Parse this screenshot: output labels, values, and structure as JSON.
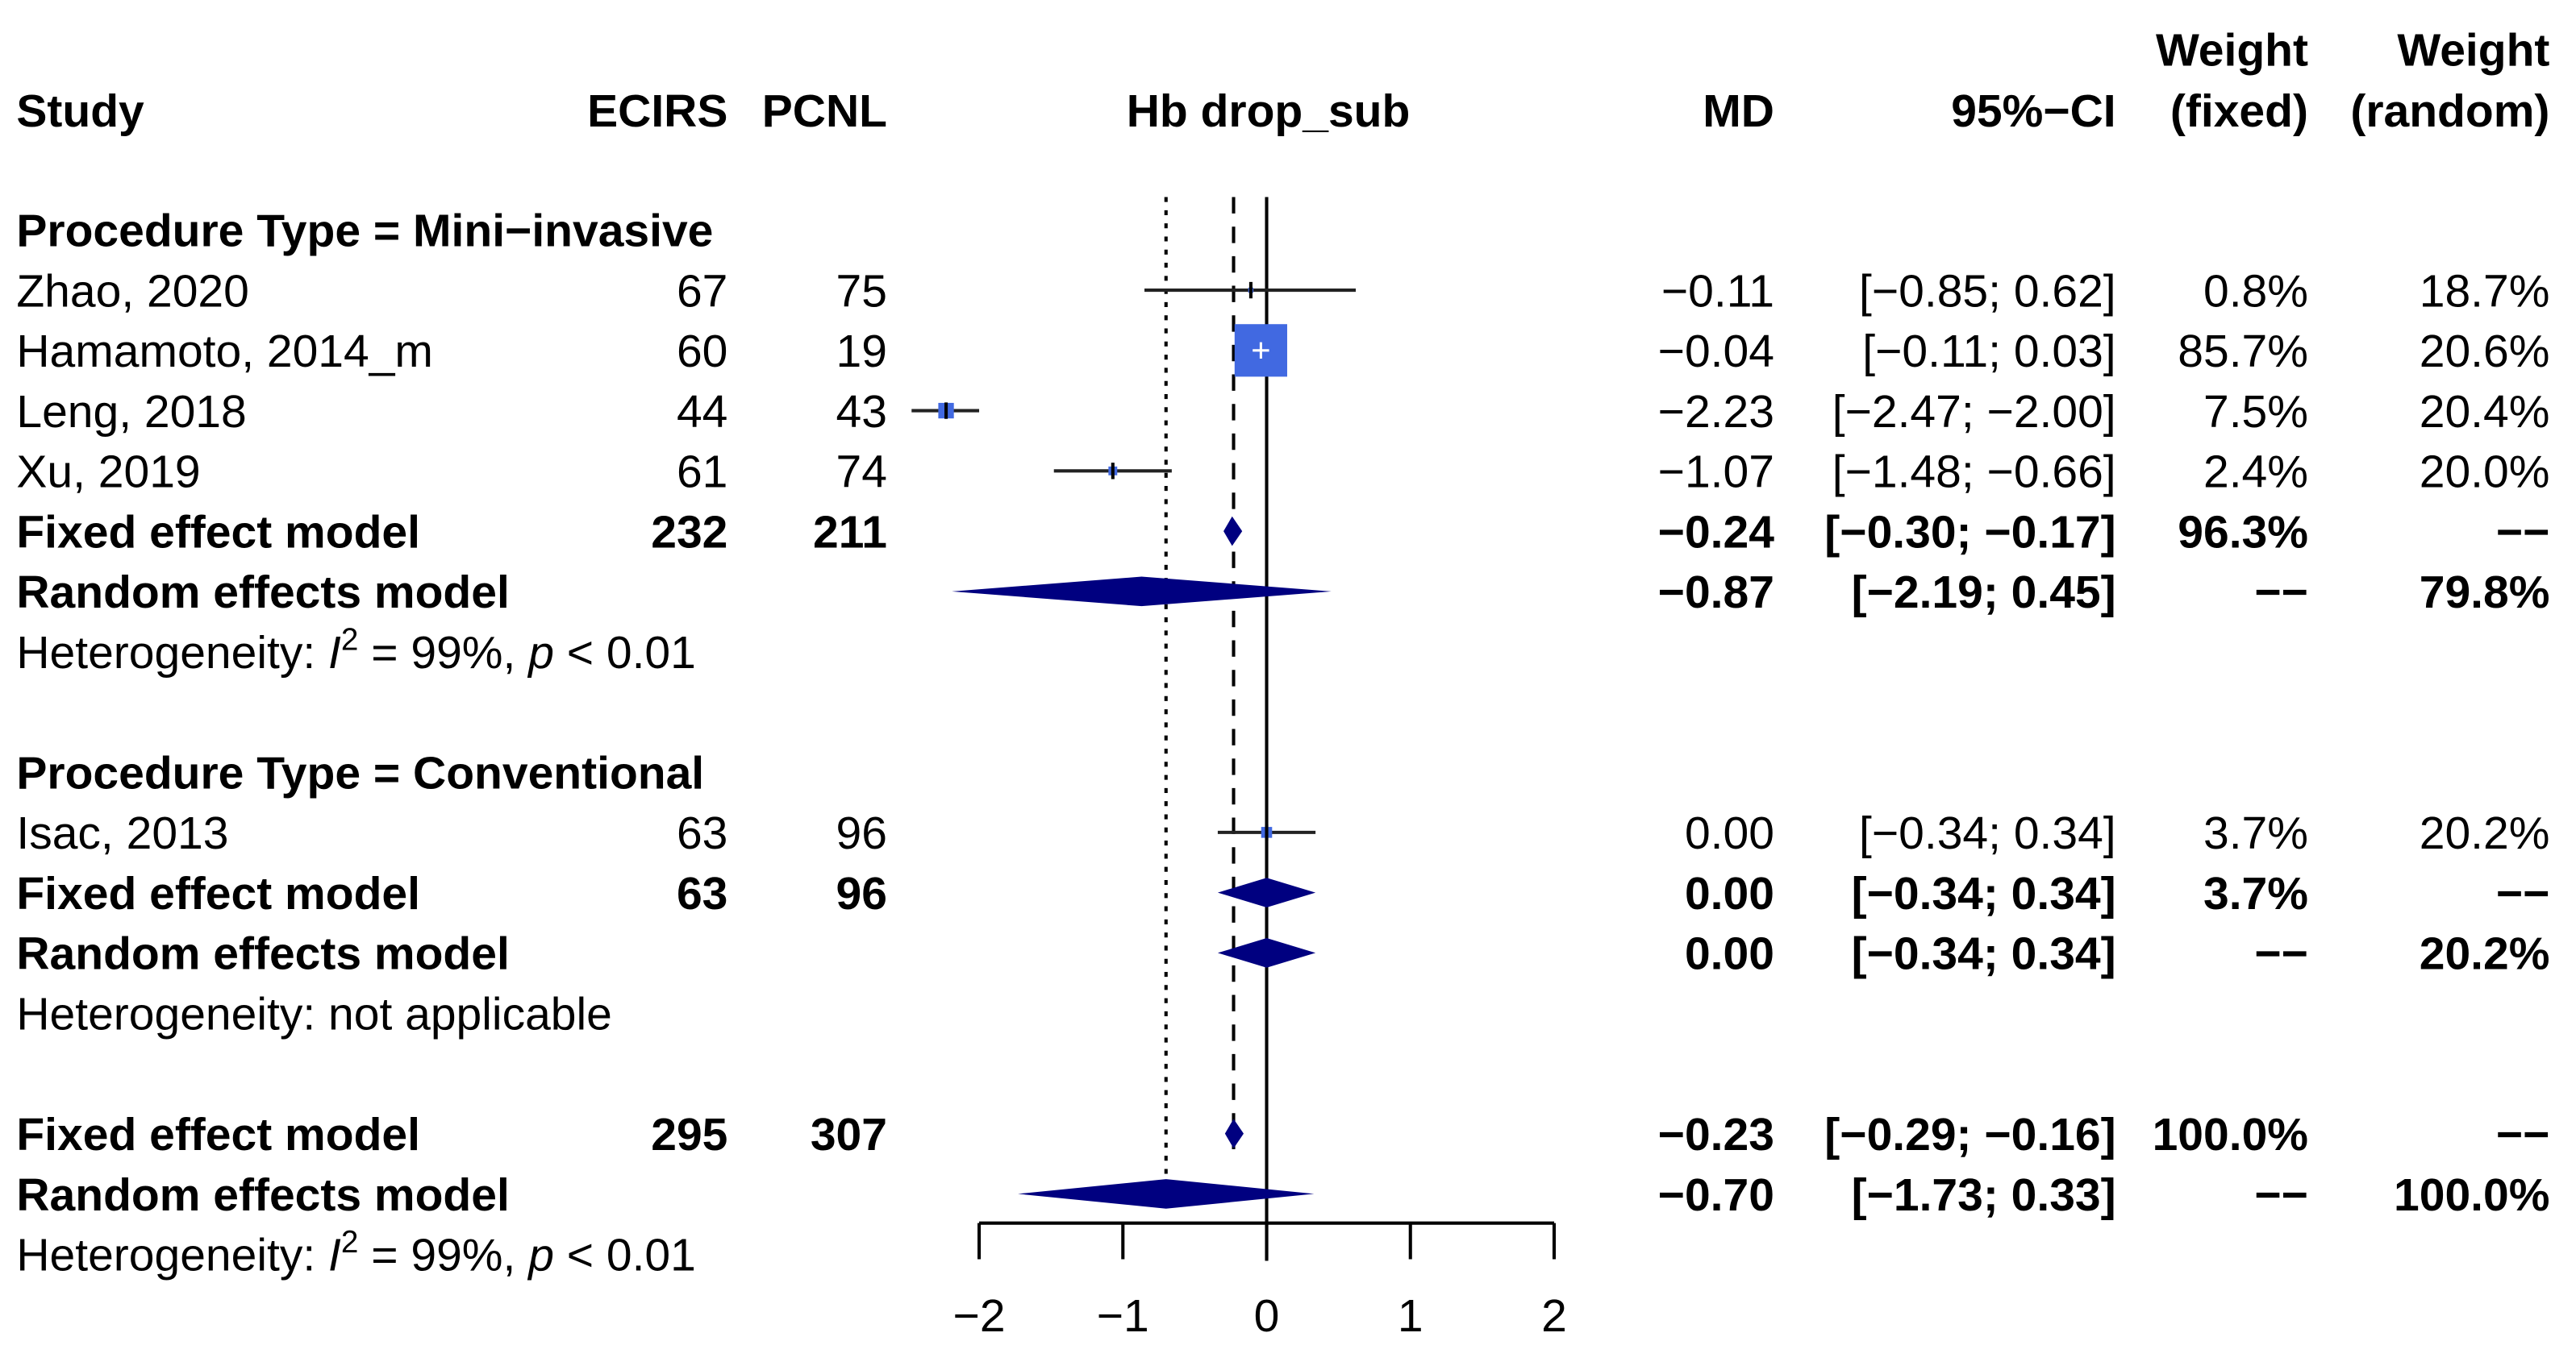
{
  "chart_data": {
    "type": "forest",
    "header": {
      "study": "Study",
      "ecirs": "ECIRS",
      "pcnl": "PCNL",
      "plot_title": "Hb drop_sub",
      "md": "MD",
      "ci": "95%−CI",
      "weight_fixed_1": "Weight",
      "weight_fixed_2": "(fixed)",
      "weight_random_1": "Weight",
      "weight_random_2": "(random)"
    },
    "xlim": [
      -2,
      2
    ],
    "xticks": [
      "−2",
      "−1",
      "0",
      "1",
      "2"
    ],
    "xtick_values": [
      -2,
      -1,
      0,
      1,
      2
    ],
    "reference_lines": {
      "null": 0,
      "fixed": -0.23,
      "random": -0.7
    },
    "colors": {
      "square": "#4169E1",
      "diamond": "#000080",
      "ci": "#000000"
    },
    "rows": [
      {
        "type": "group",
        "label": "Procedure Type = Mini−invasive"
      },
      {
        "type": "study",
        "study": "Zhao, 2020",
        "ecirs": "67",
        "pcnl": "75",
        "md": "−0.11",
        "ci": "[−0.85;  0.62]",
        "wf": "0.8%",
        "wr": "18.7%",
        "est": -0.11,
        "lo": -0.85,
        "hi": 0.62,
        "weight": 0.8
      },
      {
        "type": "study",
        "study": "Hamamoto, 2014_m",
        "ecirs": "60",
        "pcnl": "19",
        "md": "−0.04",
        "ci": "[−0.11;  0.03]",
        "wf": "85.7%",
        "wr": "20.6%",
        "est": -0.04,
        "lo": -0.11,
        "hi": 0.03,
        "weight": 85.7
      },
      {
        "type": "study",
        "study": "Leng, 2018",
        "ecirs": "44",
        "pcnl": "43",
        "md": "−2.23",
        "ci": "[−2.47; −2.00]",
        "wf": "7.5%",
        "wr": "20.4%",
        "est": -2.23,
        "lo": -2.47,
        "hi": -2.0,
        "weight": 7.5
      },
      {
        "type": "study",
        "study": "Xu, 2019",
        "ecirs": "61",
        "pcnl": "74",
        "md": "−1.07",
        "ci": "[−1.48; −0.66]",
        "wf": "2.4%",
        "wr": "20.0%",
        "est": -1.07,
        "lo": -1.48,
        "hi": -0.66,
        "weight": 2.4
      },
      {
        "type": "fixed",
        "study": "Fixed effect model",
        "ecirs": "232",
        "pcnl": "211",
        "md": "−0.24",
        "ci": "[−0.30; −0.17]",
        "wf": "96.3%",
        "wr": "−−",
        "est": -0.24,
        "lo": -0.3,
        "hi": -0.17
      },
      {
        "type": "random",
        "study": "Random effects model",
        "ecirs": "",
        "pcnl": "",
        "md": "−0.87",
        "ci": "[−2.19;  0.45]",
        "wf": "−−",
        "wr": "79.8%",
        "est": -0.87,
        "lo": -2.19,
        "hi": 0.45
      },
      {
        "type": "het",
        "prefix": "Heterogeneity: ",
        "i": "I",
        "sup": "2",
        "mid": " = 99%, ",
        "p": "p",
        "rest": " < 0.01"
      },
      {
        "type": "blank"
      },
      {
        "type": "group",
        "label": "Procedure Type = Conventional"
      },
      {
        "type": "study",
        "study": "Isac, 2013",
        "ecirs": "63",
        "pcnl": "96",
        "md": "0.00",
        "ci": "[−0.34;  0.34]",
        "wf": "3.7%",
        "wr": "20.2%",
        "est": 0.0,
        "lo": -0.34,
        "hi": 0.34,
        "weight": 3.7
      },
      {
        "type": "fixed",
        "study": "Fixed effect model",
        "ecirs": "63",
        "pcnl": "96",
        "md": "0.00",
        "ci": "[−0.34;  0.34]",
        "wf": "3.7%",
        "wr": "−−",
        "est": 0.0,
        "lo": -0.34,
        "hi": 0.34
      },
      {
        "type": "random",
        "study": "Random effects model",
        "ecirs": "",
        "pcnl": "",
        "md": "0.00",
        "ci": "[−0.34;  0.34]",
        "wf": "−−",
        "wr": "20.2%",
        "est": 0.0,
        "lo": -0.34,
        "hi": 0.34
      },
      {
        "type": "hettext",
        "text": "Heterogeneity: not applicable"
      },
      {
        "type": "blank"
      },
      {
        "type": "fixed",
        "study": "Fixed effect model",
        "ecirs": "295",
        "pcnl": "307",
        "md": "−0.23",
        "ci": "[−0.29; −0.16]",
        "wf": "100.0%",
        "wr": "−−",
        "est": -0.23,
        "lo": -0.29,
        "hi": -0.16
      },
      {
        "type": "random",
        "study": "Random effects model",
        "ecirs": "",
        "pcnl": "",
        "md": "−0.70",
        "ci": "[−1.73;  0.33]",
        "wf": "−−",
        "wr": "100.0%",
        "est": -0.7,
        "lo": -1.73,
        "hi": 0.33
      },
      {
        "type": "het",
        "prefix": "Heterogeneity: ",
        "i": "I",
        "sup": "2",
        "mid": " = 99%, ",
        "p": "p",
        "rest": " < 0.01"
      }
    ]
  }
}
